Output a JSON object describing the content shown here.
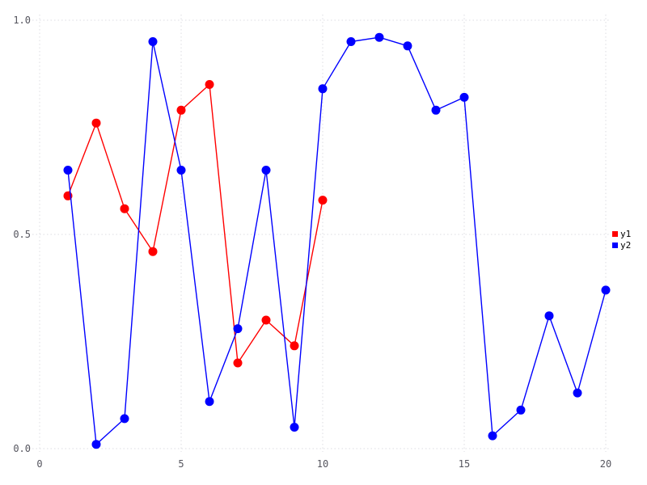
{
  "chart_data": {
    "type": "line",
    "title": "",
    "xlabel": "",
    "ylabel": "",
    "xlim": [
      0,
      20
    ],
    "ylim": [
      0.0,
      1.0
    ],
    "grid": true,
    "legend_position": "right-middle",
    "x_ticks": [
      {
        "v": 0,
        "label": "0"
      },
      {
        "v": 5,
        "label": "5"
      },
      {
        "v": 10,
        "label": "10"
      },
      {
        "v": 15,
        "label": "15"
      },
      {
        "v": 20,
        "label": "20"
      }
    ],
    "y_ticks": [
      {
        "v": 0.0,
        "label": "0.0"
      },
      {
        "v": 0.5,
        "label": "0.5"
      },
      {
        "v": 1.0,
        "label": "1.0"
      }
    ],
    "series": [
      {
        "name": "y1",
        "color": "#ff0000",
        "x": [
          1,
          2,
          3,
          4,
          5,
          6,
          7,
          8,
          9,
          10
        ],
        "y": [
          0.59,
          0.76,
          0.56,
          0.46,
          0.79,
          0.85,
          0.2,
          0.3,
          0.24,
          0.58
        ]
      },
      {
        "name": "y2",
        "color": "#0000ff",
        "x": [
          1,
          2,
          3,
          4,
          5,
          6,
          7,
          8,
          9,
          10,
          11,
          12,
          13,
          14,
          15,
          16,
          17,
          18,
          19,
          20
        ],
        "y": [
          0.65,
          0.01,
          0.07,
          0.95,
          0.65,
          0.11,
          0.28,
          0.65,
          0.05,
          0.84,
          0.95,
          0.96,
          0.94,
          0.79,
          0.82,
          0.03,
          0.09,
          0.31,
          0.13,
          0.37
        ]
      }
    ],
    "style": {
      "grid_color": "#dcdce2",
      "tick_label_color": "#55555e",
      "marker_radius": 5.5,
      "line_width": 1.4
    }
  }
}
